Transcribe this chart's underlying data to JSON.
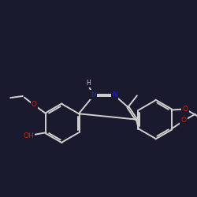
{
  "bg": "#1a1a2e",
  "black": "#d0d0d0",
  "O_color": "#cc2200",
  "N_color": "#2222cc",
  "lw": 1.4,
  "dbl_off": 0.055,
  "figsize": [
    2.5,
    2.5
  ],
  "dpi": 100,
  "xlim": [
    -1,
    11
  ],
  "ylim": [
    -1,
    11
  ]
}
